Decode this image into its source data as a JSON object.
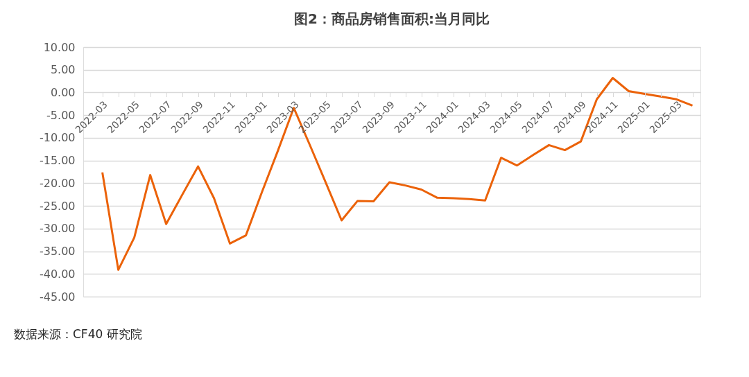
{
  "chart_data": {
    "type": "line",
    "title": "图2：商品房销售面积:当月同比",
    "categories": [
      "2022-03",
      null,
      "2022-05",
      null,
      "2022-07",
      null,
      "2022-09",
      null,
      "2022-11",
      null,
      "2023-01",
      null,
      "2023-03",
      null,
      "2023-05",
      null,
      "2023-07",
      null,
      "2023-09",
      null,
      "2023-11",
      null,
      "2024-01",
      null,
      "2024-03",
      null,
      "2024-05",
      null,
      "2024-07",
      null,
      "2024-09",
      null,
      "2024-11",
      null,
      "2025-01",
      null,
      "2025-03",
      null
    ],
    "series": [
      {
        "color": "#eb6209",
        "values": [
          -17.6,
          -39.1,
          -32.0,
          -18.2,
          -29.0,
          -22.6,
          -16.3,
          -23.3,
          -33.3,
          -31.5,
          -22.0,
          -12.9,
          -3.4,
          -11.5,
          -19.8,
          -28.2,
          -23.9,
          -24.0,
          -19.8,
          -20.5,
          -21.4,
          -23.2,
          -23.3,
          -23.5,
          -23.8,
          -14.4,
          -16.1,
          -13.8,
          -11.6,
          -12.7,
          -10.8,
          -1.5,
          3.2,
          0.3,
          -0.3,
          -0.9,
          -1.5,
          -2.9
        ]
      }
    ],
    "ylim": [
      -45,
      10
    ],
    "yticks": [
      {
        "value": 10,
        "label": "10.00"
      },
      {
        "value": 5,
        "label": "5.00"
      },
      {
        "value": 0,
        "label": "0.00"
      },
      {
        "value": -5,
        "label": "-5.00"
      },
      {
        "value": -10,
        "label": "-10.00"
      },
      {
        "value": -15,
        "label": "-15.00"
      },
      {
        "value": -20,
        "label": "-20.00"
      },
      {
        "value": -25,
        "label": "-25.00"
      },
      {
        "value": -30,
        "label": "-30.00"
      },
      {
        "value": -35,
        "label": "-35.00"
      },
      {
        "value": -40,
        "label": "-40.00"
      },
      {
        "value": -45,
        "label": "-45.00"
      }
    ],
    "grid": "y",
    "legend": false,
    "marker": "none",
    "line_style": "solid",
    "annotations": [
      "数据来源：CF40 研究院"
    ]
  }
}
